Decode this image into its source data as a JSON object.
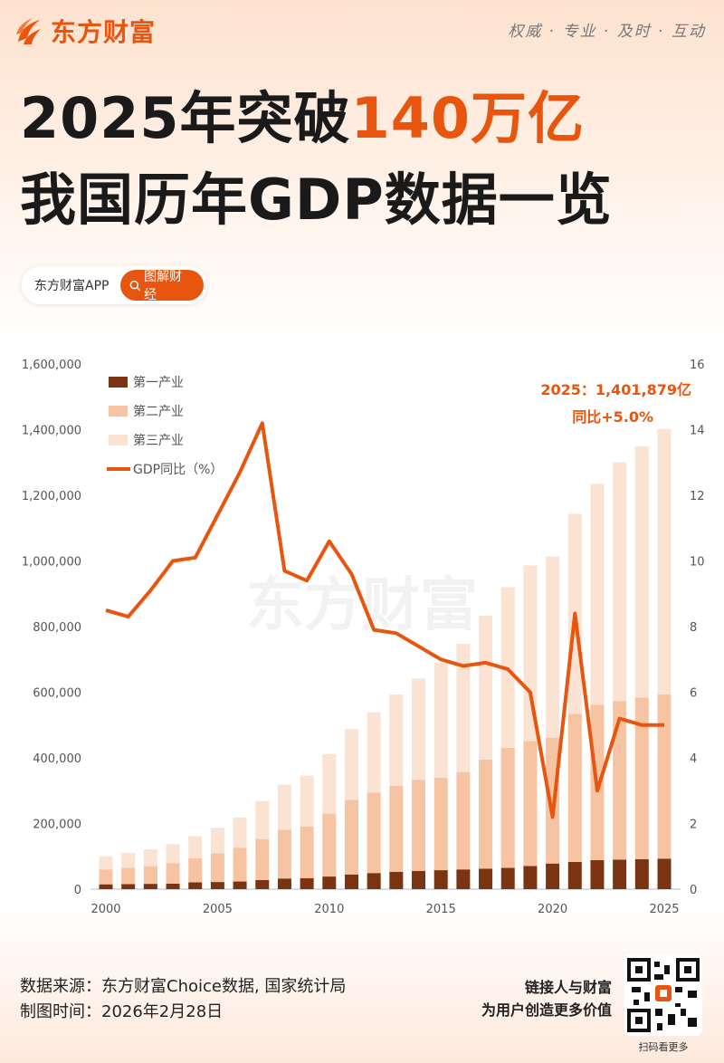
{
  "brand": {
    "name": "东方财富",
    "slogan": "权威 · 专业 · 及时 · 互动",
    "watermark": "东方财富"
  },
  "header": {
    "title_line1_prefix": "2025年突破",
    "title_line1_highlight": "140万亿",
    "title_line2": "我国历年GDP数据一览"
  },
  "pill": {
    "app_label": "东方财富APP",
    "button_label": "图解财经",
    "icon": "search-icon"
  },
  "colors": {
    "accent": "#e8550e",
    "primary": "#7a3412",
    "secondary": "#f6c3a3",
    "tertiary": "#fbe3d3"
  },
  "chart_data": {
    "type": "bar",
    "stacked": true,
    "x": [
      2000,
      2001,
      2002,
      2003,
      2004,
      2005,
      2006,
      2007,
      2008,
      2009,
      2010,
      2011,
      2012,
      2013,
      2014,
      2015,
      2016,
      2017,
      2018,
      2019,
      2020,
      2021,
      2022,
      2023,
      2024,
      2025
    ],
    "x_ticks": [
      "2000",
      "2005",
      "2010",
      "2015",
      "2020",
      "2025"
    ],
    "y_left_ticks": [
      "0",
      "200,000",
      "400,000",
      "600,000",
      "800,000",
      "1,000,000",
      "1,200,000",
      "1,400,000",
      "1,600,000"
    ],
    "y_right_ticks": [
      "0",
      "2",
      "4",
      "6",
      "8",
      "10",
      "12",
      "14",
      "16"
    ],
    "ylim_left": [
      0,
      1600000
    ],
    "ylim_right": [
      0,
      16
    ],
    "grid": false,
    "legend_position": "top-left",
    "series": [
      {
        "name": "第一产业",
        "kind": "bar",
        "color": "#7a3412",
        "values": [
          14717,
          15502,
          16190,
          16970,
          20904,
          21806,
          23317,
          27674,
          32464,
          33584,
          38430,
          44781,
          49085,
          53028,
          55626,
          57774,
          60139,
          62100,
          64745,
          70474,
          78031,
          83086,
          88345,
          89755,
          91414,
          93000
        ]
      },
      {
        "name": "第二产业",
        "kind": "bar",
        "color": "#f6c3a3",
        "values": [
          45556,
          49512,
          53897,
          62436,
          73904,
          87365,
          103162,
          125133,
          148738,
          157639,
          191630,
          227038,
          244643,
          261956,
          277572,
          282040,
          296548,
          332743,
          366001,
          380671,
          383562,
          450904,
          473790,
          482589,
          492087,
          500000
        ]
      },
      {
        "name": "第三产业",
        "kind": "bar",
        "color": "#fbe3d3",
        "values": [
          39899,
          45701,
          51133,
          57755,
          66648,
          77428,
          91760,
          115810,
          136805,
          154765,
          182061,
          216124,
          244822,
          277979,
          308059,
          349745,
          390828,
          438356,
          489701,
          535371,
          551974,
          609680,
          672739,
          727800,
          765583,
          808879
        ]
      },
      {
        "name": "GDP同比（%）",
        "kind": "line",
        "axis": "right",
        "color": "#e8550e",
        "values": [
          8.5,
          8.3,
          9.1,
          10.0,
          10.1,
          11.4,
          12.7,
          14.2,
          9.7,
          9.4,
          10.6,
          9.6,
          7.9,
          7.8,
          7.4,
          7.0,
          6.8,
          6.9,
          6.7,
          6.0,
          2.2,
          8.4,
          3.0,
          5.2,
          5.0,
          5.0
        ]
      }
    ],
    "annotation": {
      "line1": "2025：1,401,879亿",
      "line2": "同比+5.0%"
    }
  },
  "footer": {
    "source": "数据来源：东方财富Choice数据, 国家统计局",
    "date": "制图时间：2026年2月28日",
    "tagline1": "链接人与财富",
    "tagline2": "为用户创造更多价值",
    "qr_caption": "扫码看更多"
  }
}
